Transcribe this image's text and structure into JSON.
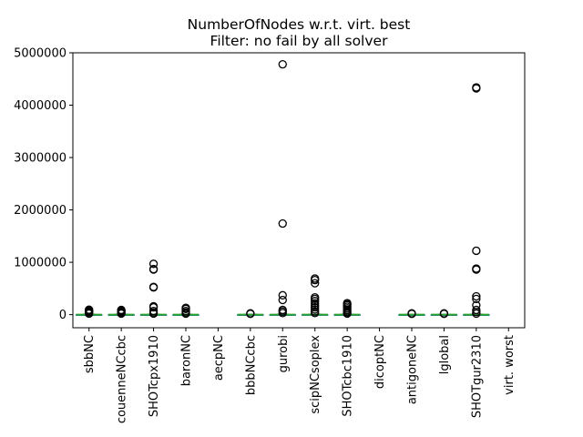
{
  "chart_data": {
    "type": "box",
    "title": "NumberOfNodes w.r.t. virt. best",
    "subtitle": "Filter: no fail by all solver",
    "xlabel": "",
    "ylabel": "",
    "ylim": [
      -250000,
      5000000
    ],
    "yticks": [
      0,
      1000000,
      2000000,
      3000000,
      4000000,
      5000000
    ],
    "ytick_labels": [
      "0",
      "1000000",
      "2000000",
      "3000000",
      "4000000",
      "5000000"
    ],
    "grid": false,
    "categories": [
      "sbbNC",
      "couenneNCcbc",
      "SHOTcpx1910",
      "baronNC",
      "aecpNC",
      "bbbNCcbc",
      "gurobi",
      "scipNCsoplex",
      "SHOTcbc1910",
      "dicoptNC",
      "antigoneNC",
      "lglobal",
      "SHOTgur2310",
      "virt. worst"
    ],
    "colors": {
      "median": "#2ca02c",
      "box": "#1f77b4",
      "flier": "#000000"
    },
    "boxes": [
      {
        "name": "sbbNC",
        "median": 0,
        "q1": 0,
        "q3": 2000,
        "whisker_low": 0,
        "whisker_high": 8000,
        "fliers": [
          20000,
          40000,
          55000,
          70000,
          85000,
          95000
        ]
      },
      {
        "name": "couenneNCcbc",
        "median": 0,
        "q1": 0,
        "q3": 2000,
        "whisker_low": 0,
        "whisker_high": 8000,
        "fliers": [
          20000,
          35000,
          50000,
          65000,
          80000,
          90000
        ]
      },
      {
        "name": "SHOTcpx1910",
        "median": 0,
        "q1": 0,
        "q3": 2000,
        "whisker_low": 0,
        "whisker_high": 8000,
        "fliers": [
          20000,
          40000,
          70000,
          140000,
          160000,
          520000,
          530000,
          860000,
          870000,
          970000
        ]
      },
      {
        "name": "baronNC",
        "median": 0,
        "q1": 0,
        "q3": 2000,
        "whisker_low": 0,
        "whisker_high": 8000,
        "fliers": [
          20000,
          40000,
          70000,
          110000,
          130000
        ]
      },
      {
        "name": "aecpNC",
        "median": null,
        "q1": null,
        "q3": null,
        "whisker_low": null,
        "whisker_high": null,
        "fliers": []
      },
      {
        "name": "bbbNCcbc",
        "median": 0,
        "q1": 0,
        "q3": 2000,
        "whisker_low": 0,
        "whisker_high": 8000,
        "fliers": [
          15000,
          25000
        ]
      },
      {
        "name": "gurobi",
        "median": 0,
        "q1": 0,
        "q3": 2000,
        "whisker_low": 0,
        "whisker_high": 8000,
        "fliers": [
          30000,
          60000,
          90000,
          280000,
          370000,
          1740000,
          4780000
        ]
      },
      {
        "name": "scipNCsoplex",
        "median": 0,
        "q1": 0,
        "q3": 3000,
        "whisker_low": 0,
        "whisker_high": 10000,
        "fliers": [
          30000,
          60000,
          100000,
          140000,
          180000,
          220000,
          260000,
          300000,
          330000,
          600000,
          660000,
          690000
        ]
      },
      {
        "name": "SHOTcbc1910",
        "median": 0,
        "q1": 0,
        "q3": 2000,
        "whisker_low": 0,
        "whisker_high": 8000,
        "fliers": [
          20000,
          40000,
          60000,
          90000,
          120000,
          150000,
          180000,
          200000,
          220000
        ]
      },
      {
        "name": "dicoptNC",
        "median": null,
        "q1": null,
        "q3": null,
        "whisker_low": null,
        "whisker_high": null,
        "fliers": []
      },
      {
        "name": "antigoneNC",
        "median": 0,
        "q1": 0,
        "q3": 2000,
        "whisker_low": 0,
        "whisker_high": 6000,
        "fliers": [
          15000,
          25000
        ]
      },
      {
        "name": "lglobal",
        "median": 0,
        "q1": 0,
        "q3": 2000,
        "whisker_low": 0,
        "whisker_high": 6000,
        "fliers": [
          15000,
          25000
        ]
      },
      {
        "name": "SHOTgur2310",
        "median": 0,
        "q1": 0,
        "q3": 2000,
        "whisker_low": 0,
        "whisker_high": 8000,
        "fliers": [
          20000,
          50000,
          90000,
          180000,
          300000,
          350000,
          860000,
          880000,
          1220000,
          4320000,
          4340000
        ]
      },
      {
        "name": "virt. worst",
        "median": null,
        "q1": null,
        "q3": null,
        "whisker_low": null,
        "whisker_high": null,
        "fliers": []
      }
    ]
  }
}
